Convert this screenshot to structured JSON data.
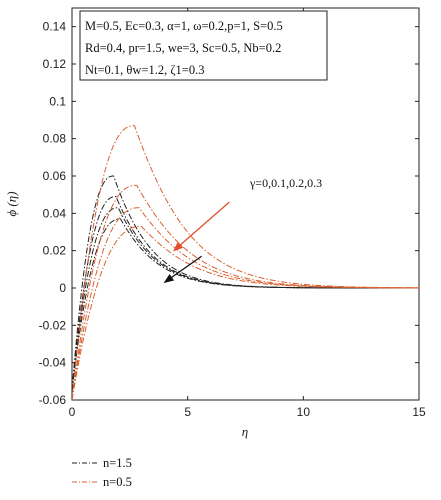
{
  "chart_data": {
    "type": "line",
    "xlabel": "η",
    "ylabel": "ϕ (η)",
    "xlim": [
      0,
      15
    ],
    "ylim": [
      -0.06,
      0.15
    ],
    "xticks": [
      "0",
      "5",
      "10",
      "15"
    ],
    "yticks": [
      "-0.06",
      "-0.04",
      "-0.02",
      "0",
      "0.02",
      "0.04",
      "0.06",
      "0.08",
      "0.1",
      "0.12",
      "0.14"
    ],
    "grid": false,
    "parameters": [
      "M=0.5, Ec=0.3, α=1, ω=0.2,p=1, S=0.5",
      "Rd=0.4, pr=1.5, we=3, Sc=0.5, Nb=0.2",
      "Nt=0.1, θw=1.2, ζ1=0.3"
    ],
    "annotation": "γ=0,0.1,0.2,0.3",
    "legend": {
      "placement": "below-left",
      "entries": [
        "n=1.5",
        "n=0.5"
      ]
    },
    "series": [
      {
        "name": "n=1.5",
        "color": "#222222",
        "peak_x": 1.8,
        "peak_y": 0.06,
        "decay": 0.75,
        "start_y": -0.055
      },
      {
        "name": "n=1.5",
        "color": "#222222",
        "peak_x": 1.9,
        "peak_y": 0.049,
        "decay": 0.75,
        "start_y": -0.055
      },
      {
        "name": "n=1.5",
        "color": "#222222",
        "peak_x": 2.0,
        "peak_y": 0.043,
        "decay": 0.75,
        "start_y": -0.055
      },
      {
        "name": "n=1.5",
        "color": "#222222",
        "peak_x": 2.1,
        "peak_y": 0.037,
        "decay": 0.75,
        "start_y": -0.055
      },
      {
        "name": "n=0.5",
        "color": "#d9602e",
        "peak_x": 2.7,
        "peak_y": 0.087,
        "decay": 0.55,
        "start_y": -0.06
      },
      {
        "name": "n=0.5",
        "color": "#d9602e",
        "peak_x": 2.8,
        "peak_y": 0.055,
        "decay": 0.55,
        "start_y": -0.06
      },
      {
        "name": "n=0.5",
        "color": "#d9602e",
        "peak_x": 2.9,
        "peak_y": 0.043,
        "decay": 0.55,
        "start_y": -0.06
      },
      {
        "name": "n=0.5",
        "color": "#d9602e",
        "peak_x": 3.0,
        "peak_y": 0.033,
        "decay": 0.55,
        "start_y": -0.06
      }
    ],
    "arrows": [
      {
        "color": "#e0502a",
        "from": [
          6.8,
          0.046
        ],
        "to": [
          4.4,
          0.02
        ]
      },
      {
        "color": "#111111",
        "from": [
          5.6,
          0.017
        ],
        "to": [
          4.0,
          0.003
        ]
      }
    ]
  }
}
